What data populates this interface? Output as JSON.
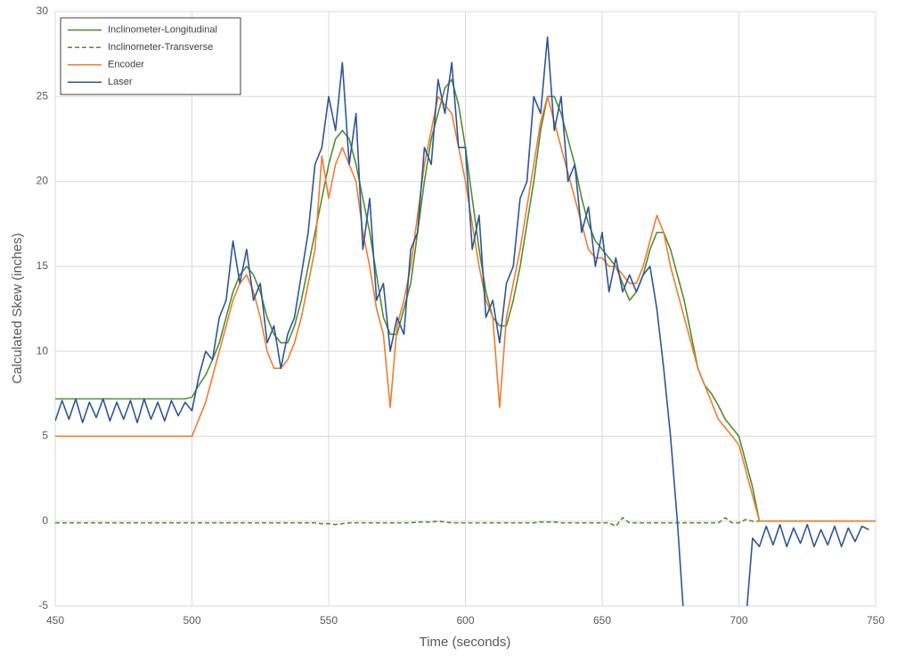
{
  "chart_data": {
    "type": "line",
    "xlabel": "Time (seconds)",
    "ylabel": "Calculated Skew (inches)",
    "xlim": [
      450,
      750
    ],
    "ylim": [
      -5,
      30
    ],
    "xticks": [
      450,
      500,
      550,
      600,
      650,
      700,
      750
    ],
    "yticks": [
      -5,
      0,
      5,
      10,
      15,
      20,
      25,
      30
    ],
    "grid": true,
    "legend": "upper left",
    "x": [
      450,
      452.5,
      455,
      457.5,
      460,
      462.5,
      465,
      467.5,
      470,
      472.5,
      475,
      477.5,
      480,
      482.5,
      485,
      487.5,
      490,
      492.5,
      495,
      497.5,
      500,
      502.5,
      505,
      507.5,
      510,
      512.5,
      515,
      517.5,
      520,
      522.5,
      525,
      527.5,
      530,
      532.5,
      535,
      537.5,
      540,
      542.5,
      545,
      547.5,
      550,
      552.5,
      555,
      557.5,
      560,
      562.5,
      565,
      567.5,
      570,
      572.5,
      575,
      577.5,
      580,
      582.5,
      585,
      587.5,
      590,
      592.5,
      595,
      597.5,
      600,
      602.5,
      605,
      607.5,
      610,
      612.5,
      615,
      617.5,
      620,
      622.5,
      625,
      627.5,
      630,
      632.5,
      635,
      637.5,
      640,
      642.5,
      645,
      647.5,
      650,
      652.5,
      655,
      657.5,
      660,
      662.5,
      665,
      667.5,
      670,
      672.5,
      675,
      677.5,
      680,
      682.5,
      685,
      687.5,
      690,
      692.5,
      695,
      697.5,
      700,
      702.5,
      705,
      707.5,
      710,
      712.5,
      715,
      717.5,
      720,
      722.5,
      725,
      727.5,
      730,
      732.5,
      735,
      737.5,
      740,
      742.5,
      745,
      747.5,
      750
    ],
    "series": [
      {
        "name": "Inclinometer-Longitudinal",
        "color": "#4f8f2f",
        "linestyle": "solid",
        "values": [
          7.2,
          7.2,
          7.2,
          7.2,
          7.2,
          7.2,
          7.2,
          7.2,
          7.2,
          7.2,
          7.2,
          7.2,
          7.2,
          7.2,
          7.2,
          7.2,
          7.2,
          7.2,
          7.2,
          7.2,
          7.3,
          8,
          8.6,
          9.5,
          10.5,
          12,
          13.5,
          14.5,
          15,
          14.5,
          13.5,
          12,
          11,
          10.5,
          10.5,
          11.5,
          13,
          15,
          17,
          19,
          21,
          22.5,
          23,
          22.5,
          21,
          19,
          17,
          14.5,
          12,
          11,
          11,
          12.5,
          14,
          17,
          20,
          22.5,
          24,
          25.5,
          26,
          24.5,
          22,
          19,
          16,
          13.5,
          12,
          11.5,
          11.5,
          13,
          15,
          17.5,
          20,
          23,
          25,
          25,
          24,
          22.5,
          21,
          19,
          17.5,
          16.5,
          16,
          15.5,
          15,
          14,
          13,
          13.5,
          14.5,
          16,
          17,
          17,
          16,
          14.5,
          13,
          11,
          9,
          8,
          7.5,
          6.8,
          6,
          5.5,
          5,
          3.5,
          2,
          0,
          0,
          0,
          0,
          0,
          0,
          0,
          0,
          0,
          0,
          0,
          0,
          0,
          0,
          0,
          0,
          0,
          0
        ]
      },
      {
        "name": "Inclinometer-Transverse",
        "color": "#4f8f2f",
        "linestyle": "dashed",
        "values": [
          -0.1,
          -0.1,
          -0.1,
          -0.1,
          -0.1,
          -0.1,
          -0.1,
          -0.1,
          -0.1,
          -0.1,
          -0.1,
          -0.1,
          -0.1,
          -0.1,
          -0.1,
          -0.1,
          -0.1,
          -0.1,
          -0.1,
          -0.1,
          -0.1,
          -0.1,
          -0.1,
          -0.1,
          -0.1,
          -0.1,
          -0.1,
          -0.1,
          -0.1,
          -0.1,
          -0.1,
          -0.1,
          -0.1,
          -0.1,
          -0.1,
          -0.1,
          -0.1,
          -0.1,
          -0.1,
          -0.15,
          -0.15,
          -0.2,
          -0.15,
          -0.1,
          -0.1,
          -0.1,
          -0.1,
          -0.1,
          -0.1,
          -0.1,
          -0.1,
          -0.1,
          -0.1,
          -0.05,
          -0.05,
          -0.05,
          0,
          -0.05,
          -0.1,
          -0.1,
          -0.1,
          -0.1,
          -0.1,
          -0.1,
          -0.1,
          -0.1,
          -0.1,
          -0.1,
          -0.1,
          -0.1,
          -0.1,
          -0.05,
          -0.05,
          -0.05,
          -0.1,
          -0.1,
          -0.1,
          -0.1,
          -0.1,
          -0.1,
          -0.1,
          -0.1,
          -0.3,
          0.2,
          -0.1,
          -0.1,
          -0.1,
          -0.1,
          -0.1,
          -0.1,
          -0.1,
          -0.1,
          -0.1,
          -0.1,
          -0.1,
          -0.1,
          -0.1,
          -0.1,
          0.2,
          -0.1,
          -0.1,
          0.1,
          0,
          0,
          0,
          0,
          0,
          0,
          0,
          0,
          0,
          0,
          0,
          0,
          0,
          0,
          0,
          0,
          0,
          0,
          0
        ]
      },
      {
        "name": "Encoder",
        "color": "#ed7d31",
        "linestyle": "solid",
        "values": [
          5,
          5,
          5,
          5,
          5,
          5,
          5,
          5,
          5,
          5,
          5,
          5,
          5,
          5,
          5,
          5,
          5,
          5,
          5,
          5,
          5,
          6,
          7,
          8.5,
          10,
          11.5,
          13,
          14,
          14.5,
          13.5,
          12,
          10,
          9,
          9,
          9.5,
          10.5,
          12,
          14,
          16,
          21.5,
          19,
          21,
          22,
          21,
          20,
          17,
          15,
          12.5,
          11,
          6.7,
          11.5,
          13,
          15,
          18,
          21,
          23,
          25,
          24.5,
          24,
          22,
          20,
          17.5,
          15,
          13,
          12,
          6.7,
          12,
          14,
          16,
          18.5,
          21,
          23.5,
          25,
          23.5,
          22,
          20.5,
          19,
          17.5,
          16,
          15.5,
          15.5,
          15,
          15,
          14.5,
          14,
          14,
          15,
          16.5,
          18,
          17,
          15,
          13.5,
          12,
          10.5,
          9,
          8,
          7,
          6,
          5.5,
          5,
          4.5,
          3,
          1.5,
          0,
          0,
          0,
          0,
          0,
          0,
          0,
          0,
          0,
          0,
          0,
          0,
          0,
          0,
          0,
          0,
          0,
          0
        ]
      },
      {
        "name": "Laser",
        "color": "#2f5597",
        "linestyle": "solid",
        "values": [
          5.9,
          7.1,
          6,
          7.2,
          5.8,
          7,
          6.1,
          7.2,
          5.9,
          7,
          6,
          7.1,
          5.8,
          7.2,
          6,
          7,
          5.9,
          7.1,
          6.2,
          7,
          6.5,
          8.5,
          10,
          9.5,
          12,
          13,
          16.5,
          14,
          16,
          13,
          14,
          10.5,
          11.5,
          9,
          11,
          12,
          14.5,
          17,
          21,
          22,
          25,
          23,
          27,
          21,
          24,
          16,
          19,
          13,
          14,
          10,
          12,
          11,
          16,
          17,
          22,
          21,
          26,
          24,
          27,
          22,
          22,
          16,
          18,
          12,
          13,
          10.5,
          14,
          15,
          19,
          20,
          25,
          24,
          28.5,
          23,
          25,
          20,
          21,
          17,
          18.5,
          15,
          17,
          13.5,
          15.5,
          13.5,
          14.5,
          13.5,
          14.5,
          15,
          12.5,
          9,
          5,
          0,
          -6,
          -6,
          -6,
          -6,
          -6,
          -6,
          -6,
          -6,
          -6,
          -6,
          -1,
          -1.5,
          -0.3,
          -1.4,
          -0.2,
          -1.5,
          -0.4,
          -1.3,
          -0.2,
          -1.5,
          -0.5,
          -1.4,
          -0.3,
          -1.5,
          -0.4,
          -1.2,
          -0.3,
          -0.5,
          null
        ]
      }
    ]
  }
}
